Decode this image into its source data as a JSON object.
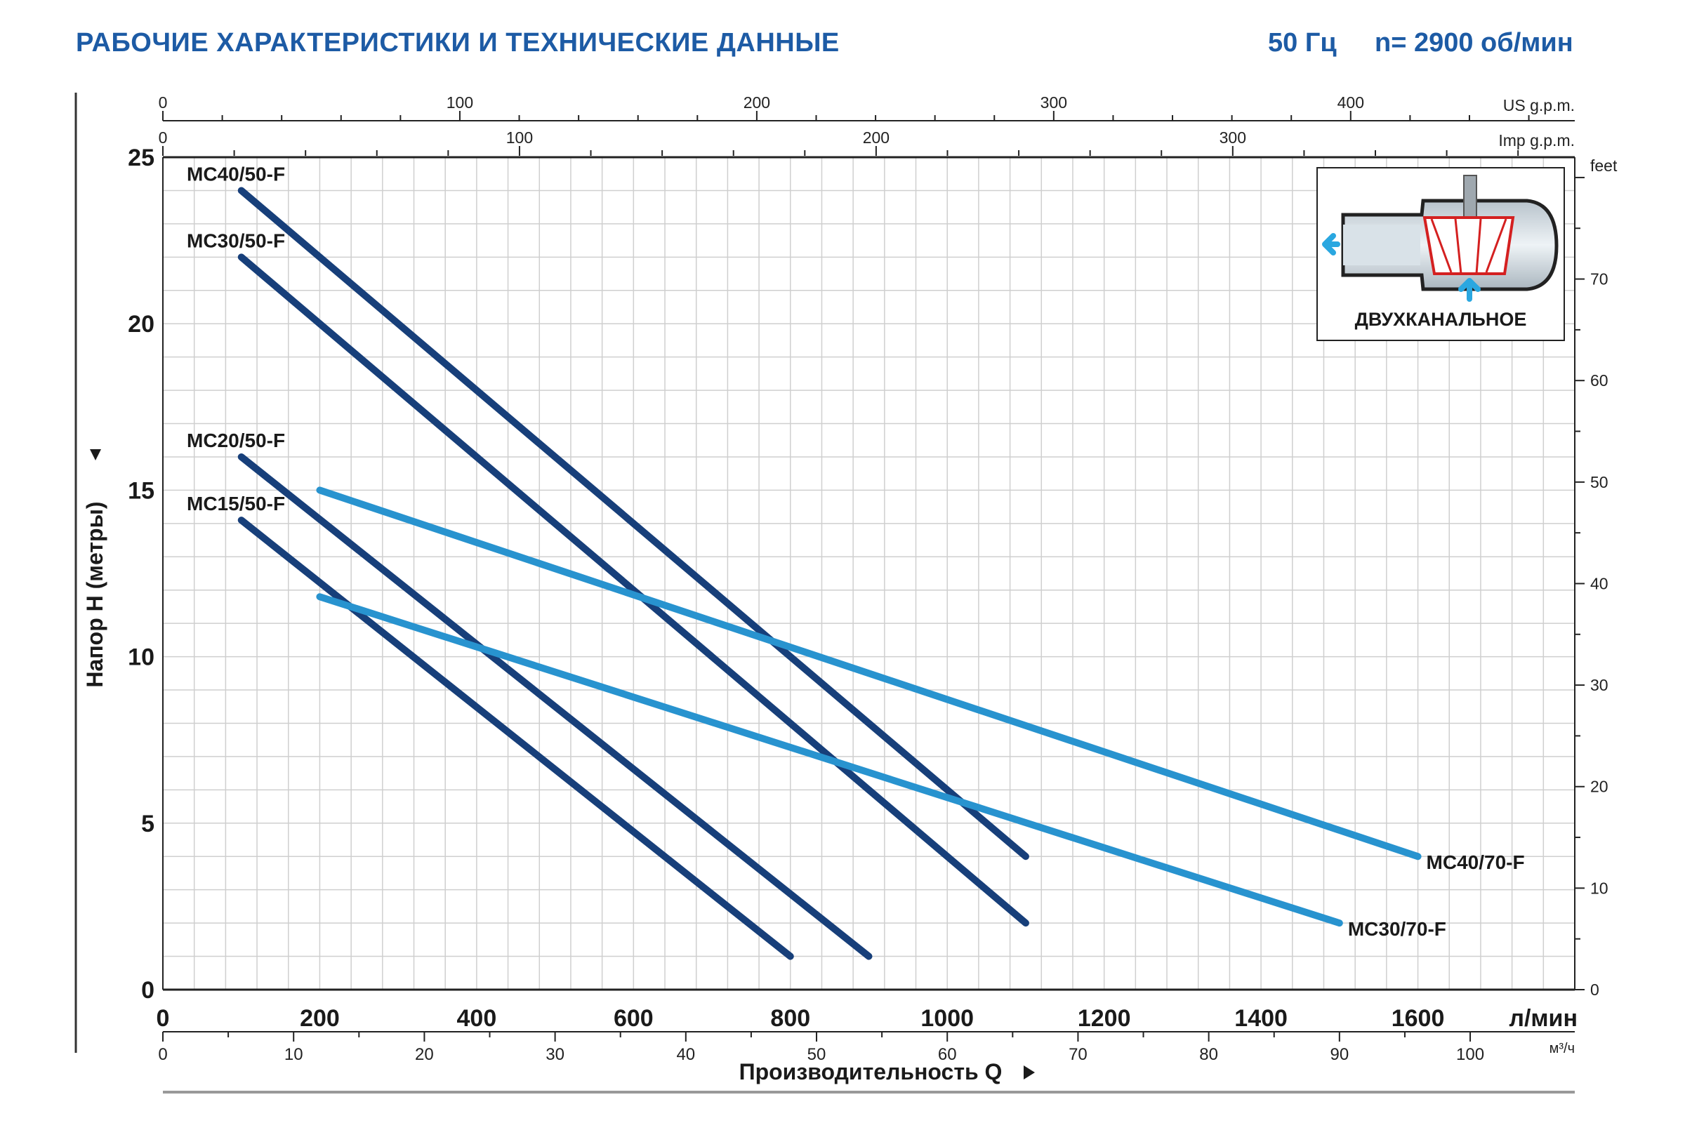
{
  "header": {
    "title": "РАБОЧИЕ ХАРАКТЕРИСТИКИ И ТЕХНИЧЕСКИЕ ДАННЫЕ",
    "frequency": "50 Гц",
    "speed": "n= 2900 об/мин"
  },
  "inset": {
    "label": "ДВУХКАНАЛЬНОЕ",
    "icon": "dual-channel-impeller-icon"
  },
  "colors": {
    "title": "#1d5ba5",
    "dark_series": "#173f7a",
    "light_series": "#2893cf",
    "grid": "#cfcfcf",
    "impeller": "#d42020",
    "arrow": "#2aa7e0"
  },
  "chart_data": {
    "type": "line",
    "x": {
      "label": "Производительность Q",
      "unit": "л/мин",
      "range": [
        0,
        1800
      ],
      "ticks": [
        0,
        200,
        400,
        600,
        800,
        1000,
        1200,
        1400,
        1600
      ]
    },
    "x_secondary": {
      "unit": "м³/ч",
      "range": [
        0,
        108
      ],
      "ticks": [
        0,
        10,
        20,
        30,
        40,
        50,
        60,
        70,
        80,
        90,
        100
      ]
    },
    "x_top_us": {
      "unit": "US g.p.m.",
      "ticks": [
        0,
        100,
        200,
        300,
        400
      ]
    },
    "x_top_imp": {
      "unit": "Imp g.p.m.",
      "ticks": [
        0,
        100,
        200,
        300
      ]
    },
    "y": {
      "label": "Напор H (метры)",
      "range": [
        0,
        25
      ],
      "ticks": [
        0,
        5,
        10,
        15,
        20,
        25
      ]
    },
    "y_right": {
      "unit": "feet",
      "range": [
        0,
        82
      ],
      "ticks": [
        0,
        10,
        20,
        30,
        40,
        50,
        60,
        70
      ]
    },
    "grid": true,
    "series": [
      {
        "name": "MC40/50-F",
        "color": "#173f7a",
        "label_pos": "start",
        "points": [
          [
            100,
            24
          ],
          [
            1100,
            4
          ]
        ]
      },
      {
        "name": "MC30/50-F",
        "color": "#173f7a",
        "label_pos": "start",
        "points": [
          [
            100,
            22
          ],
          [
            1100,
            2
          ]
        ]
      },
      {
        "name": "MC20/50-F",
        "color": "#173f7a",
        "label_pos": "start",
        "points": [
          [
            100,
            16
          ],
          [
            900,
            1
          ]
        ]
      },
      {
        "name": "MC15/50-F",
        "color": "#173f7a",
        "label_pos": "start",
        "points": [
          [
            100,
            14.1
          ],
          [
            800,
            1
          ]
        ]
      },
      {
        "name": "MC40/70-F",
        "color": "#2893cf",
        "label_pos": "end",
        "points": [
          [
            200,
            15
          ],
          [
            1600,
            4
          ]
        ]
      },
      {
        "name": "MC30/70-F",
        "color": "#2893cf",
        "label_pos": "end",
        "points": [
          [
            200,
            11.8
          ],
          [
            1500,
            2
          ]
        ]
      }
    ]
  }
}
